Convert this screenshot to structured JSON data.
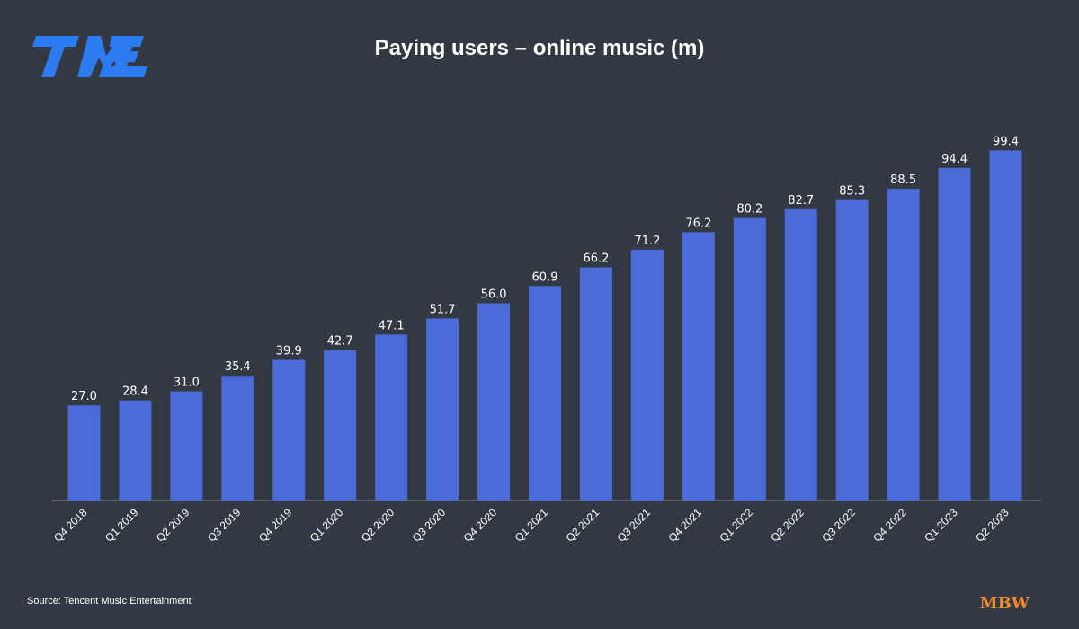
{
  "chart_data": {
    "type": "bar",
    "title": "Paying users – online music (m)",
    "categories": [
      "Q4 2018",
      "Q1 2019",
      "Q2 2019",
      "Q3 2019",
      "Q4 2019",
      "Q1 2020",
      "Q2 2020",
      "Q3 2020",
      "Q4 2020",
      "Q1 2021",
      "Q2 2021",
      "Q3 2021",
      "Q4 2021",
      "Q1 2022",
      "Q2 2022",
      "Q3 2022",
      "Q4 2022",
      "Q1 2023",
      "Q2 2023"
    ],
    "values": [
      27.0,
      28.4,
      31.0,
      35.4,
      39.9,
      42.7,
      47.1,
      51.7,
      56.0,
      60.9,
      66.2,
      71.2,
      76.2,
      80.2,
      82.7,
      85.3,
      88.5,
      94.4,
      99.4
    ],
    "value_labels": [
      "27.0",
      "28.4",
      "31.0",
      "35.4",
      "39.9",
      "42.7",
      "47.1",
      "51.7",
      "56.0",
      "60.9",
      "66.2",
      "71.2",
      "76.2",
      "80.2",
      "82.7",
      "85.3",
      "88.5",
      "94.4",
      "99.4"
    ],
    "color": "#4a6bd8",
    "ylim": [
      0,
      100
    ],
    "source": "Source: Tencent Music Entertainment",
    "brand": "MBW"
  }
}
